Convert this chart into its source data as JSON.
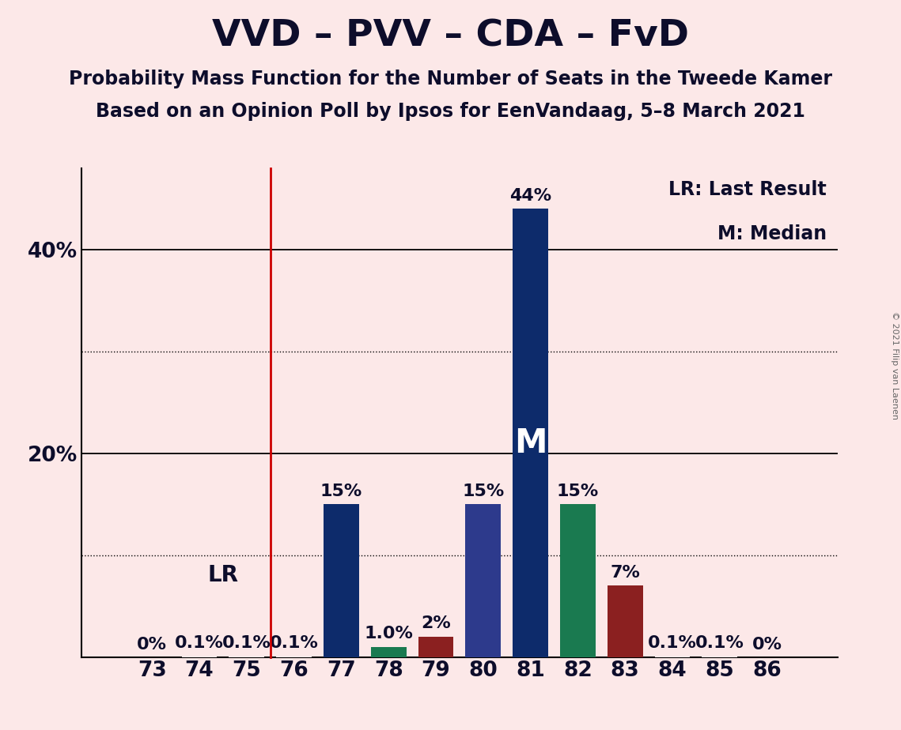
{
  "title": "VVD – PVV – CDA – FvD",
  "subtitle1": "Probability Mass Function for the Number of Seats in the Tweede Kamer",
  "subtitle2": "Based on an Opinion Poll by Ipsos for EenVandaag, 5–8 March 2021",
  "copyright": "© 2021 Filip van Laenen",
  "legend_lr": "LR: Last Result",
  "legend_m": "M: Median",
  "background_color": "#fce8e8",
  "seats": [
    73,
    74,
    75,
    76,
    77,
    78,
    79,
    80,
    81,
    82,
    83,
    84,
    85,
    86
  ],
  "values": [
    0.0,
    0.1,
    0.1,
    0.1,
    15.0,
    1.0,
    2.0,
    15.0,
    44.0,
    15.0,
    7.0,
    0.1,
    0.1,
    0.0
  ],
  "bar_colors": [
    "#f5e8e8",
    "#f5e8e8",
    "#f5e8e8",
    "#f5e8e8",
    "#0d2b6b",
    "#1a7a50",
    "#8b2020",
    "#2d3a8c",
    "#0d2b6b",
    "#1a7a50",
    "#8b2020",
    "#f5e8e8",
    "#f5e8e8",
    "#f5e8e8"
  ],
  "labels": [
    "0%",
    "0.1%",
    "0.1%",
    "0.1%",
    "15%",
    "1.0%",
    "2%",
    "15%",
    "44%",
    "15%",
    "7%",
    "0.1%",
    "0.1%",
    "0%"
  ],
  "lr_seat": 75.5,
  "median_seat": 81,
  "lr_label": "LR",
  "median_label": "M",
  "ylim": [
    0,
    48
  ],
  "yticks": [
    20,
    40
  ],
  "ytick_labels": [
    "20%",
    "40%"
  ],
  "dotted_lines": [
    10,
    30
  ],
  "solid_lines": [
    20,
    40
  ],
  "title_fontsize": 34,
  "subtitle_fontsize": 17,
  "tick_fontsize": 19,
  "bar_label_fontsize": 16,
  "lr_fontsize": 20,
  "median_fontsize": 30,
  "legend_fontsize": 17
}
